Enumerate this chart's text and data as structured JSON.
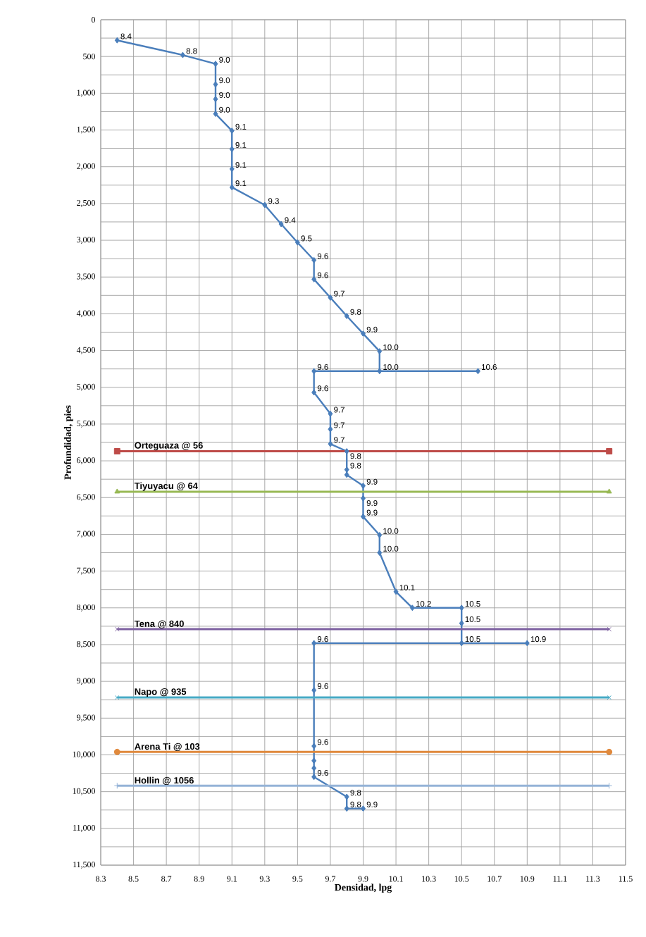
{
  "chart_data": {
    "type": "line",
    "xlabel": "Densidad, lpg",
    "ylabel": "Profundidad, pies",
    "xlim": [
      8.3,
      11.5
    ],
    "xticks": [
      8.3,
      8.5,
      8.7,
      8.9,
      9.1,
      9.3,
      9.5,
      9.7,
      9.9,
      10.1,
      10.3,
      10.5,
      10.7,
      10.9,
      11.1,
      11.3,
      11.5
    ],
    "ylim": [
      11500,
      0
    ],
    "yticks": [
      0,
      {
        "value": 250,
        "label": null
      },
      500,
      {
        "value": 750,
        "label": null
      },
      {
        "value": 1000,
        "label": "1,000"
      },
      {
        "value": 1250,
        "label": null
      },
      {
        "value": 1500,
        "label": "1,500"
      },
      {
        "value": 1750,
        "label": null
      },
      {
        "value": 2000,
        "label": "2,000"
      },
      {
        "value": 2250,
        "label": null
      },
      {
        "value": 2500,
        "label": "2,500"
      },
      {
        "value": 2750,
        "label": null
      },
      {
        "value": 3000,
        "label": "3,000"
      },
      {
        "value": 3250,
        "label": null
      },
      {
        "value": 3500,
        "label": "3,500"
      },
      {
        "value": 3750,
        "label": null
      },
      {
        "value": 4000,
        "label": "4,000"
      },
      {
        "value": 4250,
        "label": null
      },
      {
        "value": 4500,
        "label": "4,500"
      },
      {
        "value": 4750,
        "label": null
      },
      {
        "value": 5000,
        "label": "5,000"
      },
      {
        "value": 5250,
        "label": null
      },
      {
        "value": 5500,
        "label": "5,500"
      },
      {
        "value": 5750,
        "label": null
      },
      {
        "value": 6000,
        "label": "6,000"
      },
      {
        "value": 6250,
        "label": null
      },
      {
        "value": 6500,
        "label": "6,500"
      },
      {
        "value": 6750,
        "label": null
      },
      {
        "value": 7000,
        "label": "7,000"
      },
      {
        "value": 7250,
        "label": null
      },
      {
        "value": 7500,
        "label": "7,500"
      },
      {
        "value": 7750,
        "label": null
      },
      {
        "value": 8000,
        "label": "8,000"
      },
      {
        "value": 8250,
        "label": null
      },
      {
        "value": 8500,
        "label": "8,500"
      },
      {
        "value": 8750,
        "label": null
      },
      {
        "value": 9000,
        "label": "9,000"
      },
      {
        "value": 9250,
        "label": null
      },
      {
        "value": 9500,
        "label": "9,500"
      },
      {
        "value": 9750,
        "label": null
      },
      {
        "value": 10000,
        "label": "10,000"
      },
      {
        "value": 10250,
        "label": null
      },
      {
        "value": 10500,
        "label": "10,500"
      },
      {
        "value": 10750,
        "label": null
      },
      {
        "value": 11000,
        "label": "11,000"
      },
      {
        "value": 11250,
        "label": null
      },
      {
        "value": 11500,
        "label": "11,500"
      }
    ],
    "grid": true,
    "line_style": "solid",
    "series": [
      {
        "color": "#4a7ebb",
        "marker": "diamond",
        "x": [
          8.4,
          8.8,
          9.0,
          9.0,
          9.0,
          9.0,
          9.1,
          9.1,
          9.1,
          9.1,
          9.3,
          9.4,
          9.5,
          9.6,
          9.6,
          9.7,
          9.8,
          9.9,
          10.0,
          10.0,
          10.6,
          9.6,
          9.6,
          9.7,
          9.7,
          9.7,
          9.8,
          9.8,
          9.8,
          9.9,
          9.9,
          9.9,
          10.0,
          10.0,
          10.1,
          10.2,
          10.5,
          10.5,
          10.5,
          10.9,
          9.6,
          9.6,
          9.6,
          9.6,
          9.6,
          9.6,
          9.8,
          9.8,
          9.9
        ],
        "values": [
          280,
          480,
          600,
          880,
          1080,
          1280,
          1510,
          1760,
          2030,
          2280,
          2520,
          2780,
          3030,
          3270,
          3530,
          3780,
          4030,
          4270,
          4510,
          4780,
          4780,
          4780,
          5070,
          5360,
          5570,
          5770,
          5870,
          6120,
          6190,
          6340,
          6510,
          6760,
          7010,
          7250,
          7780,
          8000,
          8000,
          8210,
          8480,
          8480,
          8480,
          9120,
          9880,
          10080,
          10180,
          10300,
          10570,
          10730,
          10730
        ]
      },
      {
        "name": "Orteguaza @ 56",
        "color": "#be4b48",
        "marker": "square",
        "x": [
          8.4,
          11.4
        ],
        "values": [
          5870,
          5870
        ]
      },
      {
        "name": "Tiyuyacu @ 64",
        "color": "#98b954",
        "marker": "triangle",
        "x": [
          8.4,
          11.4
        ],
        "values": [
          6420,
          6420
        ]
      },
      {
        "name": "Tena @ 840",
        "color": "#7d60a0",
        "marker": "cross",
        "x": [
          8.4,
          11.4
        ],
        "values": [
          8290,
          8290
        ]
      },
      {
        "name": "Napo @ 935",
        "color": "#46aac5",
        "marker": "cross",
        "x": [
          8.4,
          11.4
        ],
        "values": [
          9220,
          9220
        ]
      },
      {
        "name": "Arena Ti @ 103",
        "color": "#e0893c",
        "marker": "circle",
        "x": [
          8.4,
          11.4
        ],
        "values": [
          9960,
          9960
        ]
      },
      {
        "name": "Hollin @ 1056",
        "color": "#95b3d7",
        "marker": "plus",
        "x": [
          8.4,
          11.4
        ],
        "values": [
          10420,
          10420
        ]
      }
    ],
    "annotations": [
      {
        "text": "8.4",
        "x": 8.4,
        "y": 280
      },
      {
        "text": "8.8",
        "x": 8.8,
        "y": 480
      },
      {
        "text": "9.0",
        "x": 9.0,
        "y": 600
      },
      {
        "text": "9.0",
        "x": 9.0,
        "y": 880
      },
      {
        "text": "9.0",
        "x": 9.0,
        "y": 1080
      },
      {
        "text": "9.0",
        "x": 9.0,
        "y": 1280
      },
      {
        "text": "9.1",
        "x": 9.1,
        "y": 1510
      },
      {
        "text": "9.1",
        "x": 9.1,
        "y": 1760
      },
      {
        "text": "9.1",
        "x": 9.1,
        "y": 2030
      },
      {
        "text": "9.1",
        "x": 9.1,
        "y": 2280
      },
      {
        "text": "9.3",
        "x": 9.3,
        "y": 2520
      },
      {
        "text": "9.4",
        "x": 9.4,
        "y": 2780
      },
      {
        "text": "9.5",
        "x": 9.5,
        "y": 3030
      },
      {
        "text": "9.6",
        "x": 9.6,
        "y": 3270
      },
      {
        "text": "9.6",
        "x": 9.6,
        "y": 3530
      },
      {
        "text": "9.7",
        "x": 9.7,
        "y": 3780
      },
      {
        "text": "9.8",
        "x": 9.8,
        "y": 4030
      },
      {
        "text": "9.9",
        "x": 9.9,
        "y": 4270
      },
      {
        "text": "10.0",
        "x": 10.0,
        "y": 4510
      },
      {
        "text": "10.0",
        "x": 10.0,
        "y": 4780
      },
      {
        "text": "10.6",
        "x": 10.6,
        "y": 4780
      },
      {
        "text": "9.6",
        "x": 9.6,
        "y": 4780
      },
      {
        "text": "9.6",
        "x": 9.6,
        "y": 5070
      },
      {
        "text": "9.7",
        "x": 9.7,
        "y": 5360
      },
      {
        "text": "9.7",
        "x": 9.7,
        "y": 5570
      },
      {
        "text": "9.7",
        "x": 9.7,
        "y": 5770
      },
      {
        "text": "9.8",
        "x": 9.8,
        "y": 5870
      },
      {
        "text": "9.8",
        "x": 9.8,
        "y": 6120
      },
      {
        "text": "9.9",
        "x": 9.9,
        "y": 6340
      },
      {
        "text": "9.9",
        "x": 9.9,
        "y": 6510
      },
      {
        "text": "9.9",
        "x": 9.9,
        "y": 6760
      },
      {
        "text": "10.0",
        "x": 10.0,
        "y": 7010
      },
      {
        "text": "10.0",
        "x": 10.0,
        "y": 7250
      },
      {
        "text": "10.1",
        "x": 10.1,
        "y": 7780
      },
      {
        "text": "10.2",
        "x": 10.2,
        "y": 8000
      },
      {
        "text": "10.5",
        "x": 10.5,
        "y": 8000
      },
      {
        "text": "10.5",
        "x": 10.5,
        "y": 8210
      },
      {
        "text": "10.5",
        "x": 10.5,
        "y": 8480
      },
      {
        "text": "10.9",
        "x": 10.9,
        "y": 8480
      },
      {
        "text": "9.6",
        "x": 9.6,
        "y": 8480
      },
      {
        "text": "9.6",
        "x": 9.6,
        "y": 9120
      },
      {
        "text": "9.6",
        "x": 9.6,
        "y": 9880
      },
      {
        "text": "9.6",
        "x": 9.6,
        "y": 10300
      },
      {
        "text": "9.8",
        "x": 9.8,
        "y": 10570
      },
      {
        "text": "9.8",
        "x": 9.8,
        "y": 10730
      },
      {
        "text": "9.9",
        "x": 9.9,
        "y": 10730
      }
    ]
  }
}
